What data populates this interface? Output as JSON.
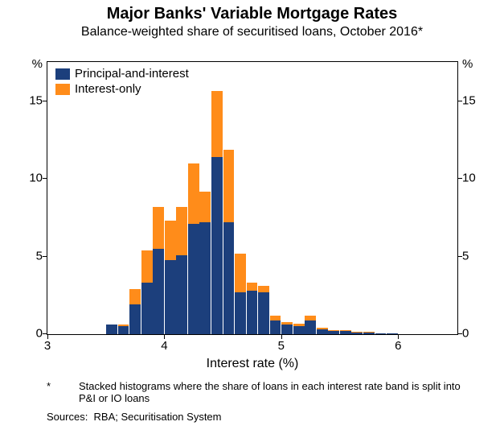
{
  "title": "Major Banks' Variable Mortgage Rates",
  "subtitle": "Balance-weighted share of securitised loans, October 2016*",
  "chart": {
    "type": "stacked-bar",
    "xlim": [
      3,
      6.5
    ],
    "ylim": [
      0,
      17.5
    ],
    "xticks": [
      3,
      4,
      5,
      6
    ],
    "yticks": [
      0,
      5,
      10,
      15
    ],
    "y_unit": "%",
    "x_title": "Interest rate (%)",
    "bar_width_x": 0.095,
    "background_color": "#ffffff",
    "border_color": "#000000",
    "series": [
      {
        "name": "Principal-and-interest",
        "color": "#1c3f7c"
      },
      {
        "name": "Interest-only",
        "color": "#ff8c1a"
      }
    ],
    "bars": [
      {
        "x": 3.55,
        "pi": 0.6,
        "io": 0.0
      },
      {
        "x": 3.65,
        "pi": 0.5,
        "io": 0.1
      },
      {
        "x": 3.75,
        "pi": 1.9,
        "io": 1.0
      },
      {
        "x": 3.85,
        "pi": 3.3,
        "io": 2.1
      },
      {
        "x": 3.95,
        "pi": 5.5,
        "io": 2.7
      },
      {
        "x": 4.05,
        "pi": 4.8,
        "io": 2.5
      },
      {
        "x": 4.15,
        "pi": 5.1,
        "io": 3.1
      },
      {
        "x": 4.25,
        "pi": 7.1,
        "io": 3.9
      },
      {
        "x": 4.35,
        "pi": 7.2,
        "io": 2.0
      },
      {
        "x": 4.45,
        "pi": 11.4,
        "io": 4.3
      },
      {
        "x": 4.55,
        "pi": 7.2,
        "io": 4.7
      },
      {
        "x": 4.65,
        "pi": 2.7,
        "io": 2.5
      },
      {
        "x": 4.75,
        "pi": 2.8,
        "io": 0.5
      },
      {
        "x": 4.85,
        "pi": 2.7,
        "io": 0.4
      },
      {
        "x": 4.95,
        "pi": 0.9,
        "io": 0.3
      },
      {
        "x": 5.05,
        "pi": 0.6,
        "io": 0.2
      },
      {
        "x": 5.15,
        "pi": 0.5,
        "io": 0.2
      },
      {
        "x": 5.25,
        "pi": 0.9,
        "io": 0.3
      },
      {
        "x": 5.35,
        "pi": 0.3,
        "io": 0.1
      },
      {
        "x": 5.45,
        "pi": 0.2,
        "io": 0.05
      },
      {
        "x": 5.55,
        "pi": 0.2,
        "io": 0.05
      },
      {
        "x": 5.65,
        "pi": 0.1,
        "io": 0.05
      },
      {
        "x": 5.75,
        "pi": 0.1,
        "io": 0.05
      },
      {
        "x": 5.85,
        "pi": 0.05,
        "io": 0.0
      },
      {
        "x": 5.95,
        "pi": 0.05,
        "io": 0.0
      }
    ],
    "legend": {
      "items": [
        {
          "label": "Principal-and-interest",
          "color": "#1c3f7c"
        },
        {
          "label": "Interest-only",
          "color": "#ff8c1a"
        }
      ]
    },
    "tick_fontsize": 15,
    "title_fontsize": 20,
    "subtitle_fontsize": 16
  },
  "footnote": {
    "marker": "*",
    "text": "Stacked histograms where the share of loans in each interest rate band is split into P&I or IO loans"
  },
  "sources_label": "Sources:",
  "sources_text": "RBA; Securitisation System"
}
